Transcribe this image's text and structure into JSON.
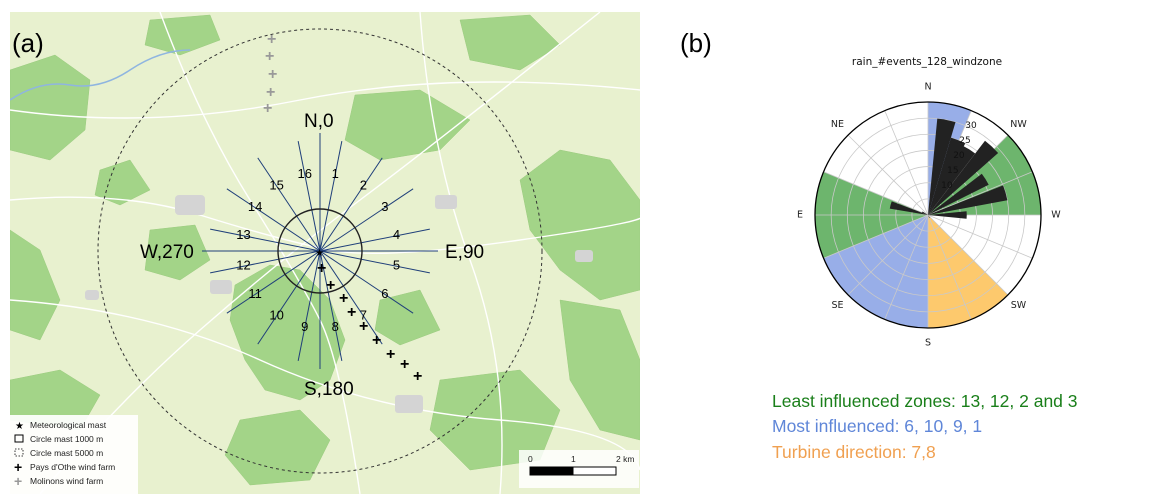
{
  "panel_a": {
    "label": "(a)",
    "compass": {
      "north": "N,0",
      "east": "E,90",
      "south": "S,180",
      "west": "W,270"
    },
    "sector_numbers": [
      "1",
      "2",
      "3",
      "4",
      "5",
      "6",
      "7",
      "8",
      "9",
      "10",
      "11",
      "12",
      "13",
      "14",
      "15",
      "16"
    ],
    "legend": [
      {
        "icon": "star-icon",
        "text": "Meteorological mast"
      },
      {
        "icon": "solid-box-icon",
        "text": "Circle mast 1000 m"
      },
      {
        "icon": "dashed-box-icon",
        "text": "Circle mast 5000 m"
      },
      {
        "icon": "black-cross-icon",
        "text": "Pays d'Othe wind farm"
      },
      {
        "icon": "grey-cross-icon",
        "text": "Molinons wind farm"
      }
    ],
    "scalebar": {
      "ticks": [
        "0",
        "1",
        "2 km"
      ]
    },
    "colors": {
      "map_base": "#e8f1cf",
      "forest": "#9fd183",
      "radial_lines": "#1f3f7a"
    }
  },
  "panel_b": {
    "label": "(b)",
    "chart_data": {
      "type": "windrose",
      "title": "rain_#events_128_windzone",
      "direction_labels": [
        "N",
        "NW",
        "W",
        "SW",
        "S",
        "SE",
        "E",
        "NE"
      ],
      "radial_ticks": [
        10,
        15,
        20,
        25,
        30
      ],
      "rmax": 35,
      "zones": [
        {
          "name": "green",
          "color": "#6db56d",
          "from_deg": 45,
          "to_deg": 90
        },
        {
          "name": "green",
          "color": "#6db56d",
          "from_deg": 247.5,
          "to_deg": 292.5
        },
        {
          "name": "blue",
          "color": "#98aee8",
          "from_deg": 0,
          "to_deg": 22.5
        },
        {
          "name": "blue",
          "color": "#98aee8",
          "from_deg": 180,
          "to_deg": 247.5
        },
        {
          "name": "orange",
          "color": "#fdc96d",
          "from_deg": 135,
          "to_deg": 180
        }
      ],
      "bars": [
        {
          "angle_deg": 11,
          "value": 30
        },
        {
          "angle_deg": 22,
          "value": 25
        },
        {
          "angle_deg": 32,
          "value": 24
        },
        {
          "angle_deg": 43,
          "value": 29
        },
        {
          "angle_deg": 58,
          "value": 21
        },
        {
          "angle_deg": 74,
          "value": 25
        },
        {
          "angle_deg": 90,
          "value": 12
        },
        {
          "angle_deg": 285,
          "value": 12
        },
        {
          "angle_deg": 297,
          "value": 2
        },
        {
          "angle_deg": 152,
          "value": 1
        }
      ]
    },
    "notes": {
      "least": "Least influenced zones: 13, 12, 2 and 3",
      "most": "Most influenced: 6, 10, 9, 1",
      "turbine": "Turbine direction: 7,8"
    },
    "note_colors": {
      "least": "#1a7f1a",
      "most": "#5f86d8",
      "turbine": "#f0a050"
    }
  }
}
